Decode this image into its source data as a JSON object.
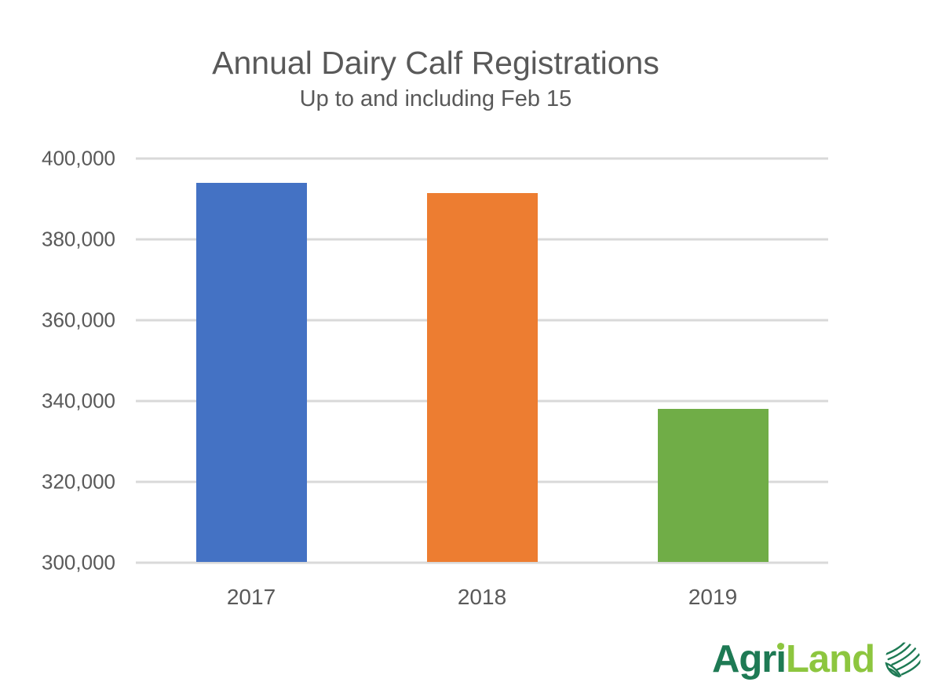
{
  "chart_data": {
    "type": "bar",
    "title": "Annual Dairy Calf Registrations",
    "subtitle": "Up to and including Feb 15",
    "categories": [
      "2017",
      "2018",
      "2019"
    ],
    "values": [
      393700,
      391300,
      337900
    ],
    "bar_colors": [
      "#4472C4",
      "#ED7D31",
      "#70AD47"
    ],
    "ylim": [
      300000,
      400000
    ],
    "yticks": [
      300000,
      320000,
      340000,
      360000,
      380000,
      400000
    ],
    "ytick_labels": [
      "300,000",
      "320,000",
      "340,000",
      "360,000",
      "380,000",
      "400,000"
    ],
    "xlabel": "",
    "ylabel": "",
    "grid": "horizontal-on",
    "legend": "none",
    "colors": {
      "text": "#595959",
      "gridline": "#D9D9D9",
      "background": "#FFFFFF"
    }
  },
  "branding": {
    "logo_text_primary": "Agri",
    "logo_text_secondary": "Land",
    "logo_color_primary": "#1E7A54",
    "logo_color_secondary": "#8DC63F",
    "logo_icon": "field-globe-icon"
  }
}
